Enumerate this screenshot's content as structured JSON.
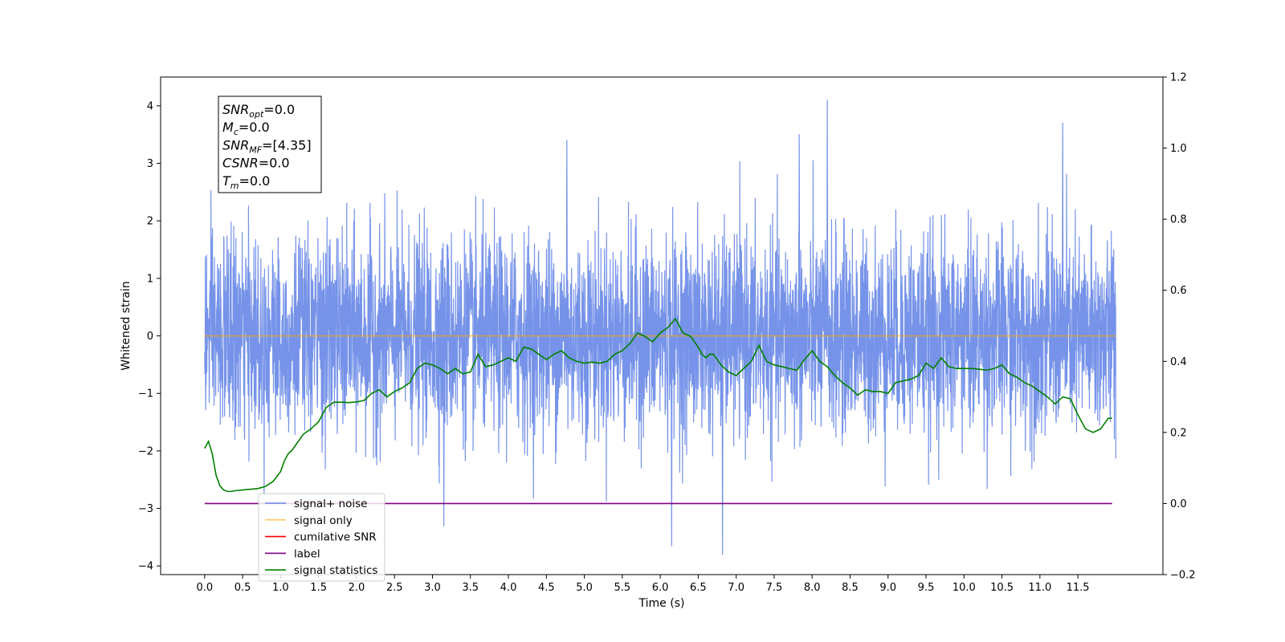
{
  "chart_data": {
    "type": "line",
    "title": "",
    "xlabel": "Time (s)",
    "ylabel": "Whitened strain",
    "y2label": "",
    "xlim": [
      -0.58,
      12.62
    ],
    "ylim": [
      -4.15,
      4.5
    ],
    "y2lim": [
      -0.2,
      1.2
    ],
    "x_ticks": [
      0.0,
      0.5,
      1.0,
      1.5,
      2.0,
      2.5,
      3.0,
      3.5,
      4.0,
      4.5,
      5.0,
      5.5,
      6.0,
      6.5,
      7.0,
      7.5,
      8.0,
      8.5,
      9.0,
      9.5,
      10.0,
      10.5,
      11.0,
      11.5
    ],
    "x_tick_labels": [
      "0.0",
      "0.5",
      "1.0",
      "1.5",
      "2.0",
      "2.5",
      "3.0",
      "3.5",
      "4.0",
      "4.5",
      "5.0",
      "5.5",
      "6.0",
      "6.5",
      "7.0",
      "7.5",
      "8.0",
      "8.5",
      "9.0",
      "9.5",
      "10.0",
      "10.5",
      "11.0",
      "11.5"
    ],
    "y_ticks": [
      -4,
      -3,
      -2,
      -1,
      0,
      1,
      2,
      3,
      4
    ],
    "y_tick_labels": [
      "−4",
      "−3",
      "−2",
      "−1",
      "0",
      "1",
      "2",
      "3",
      "4"
    ],
    "y2_ticks": [
      -0.2,
      0.0,
      0.2,
      0.4,
      0.6,
      0.8,
      1.0,
      1.2
    ],
    "y2_tick_labels": [
      "−0.2",
      "0.0",
      "0.2",
      "0.4",
      "0.6",
      "0.8",
      "1.0",
      "1.2"
    ],
    "grid": false,
    "legend_position": "lower-left",
    "series": [
      {
        "name": "signal+ noise",
        "color": "#4169e1",
        "axis": "left",
        "kind": "noise",
        "x_range": [
          0.0,
          12.0
        ],
        "approx_mean": 0.0,
        "approx_range": [
          -3.8,
          4.1
        ],
        "notable_peaks": [
          [
            8.2,
            4.1
          ],
          [
            11.3,
            3.7
          ],
          [
            4.77,
            3.4
          ],
          [
            7.83,
            3.5
          ],
          [
            6.82,
            -3.8
          ],
          [
            6.15,
            -3.65
          ],
          [
            3.15,
            -3.3
          ]
        ]
      },
      {
        "name": "signal only",
        "color": "#ffa500",
        "axis": "left",
        "x": [
          0.0,
          12.0
        ],
        "y": [
          0.0,
          0.0
        ]
      },
      {
        "name": "cumilative SNR",
        "color": "#ff0000",
        "axis": "right",
        "x": [],
        "y": []
      },
      {
        "name": "label",
        "color": "#800080",
        "axis": "right",
        "x": [
          0.0,
          11.95
        ],
        "y": [
          0.0,
          0.0
        ]
      },
      {
        "name": "signal statistics",
        "color": "#008000",
        "axis": "right",
        "x": [
          0.0,
          0.05,
          0.1,
          0.15,
          0.2,
          0.25,
          0.3,
          0.35,
          0.4,
          0.5,
          0.6,
          0.7,
          0.8,
          0.9,
          1.0,
          1.05,
          1.1,
          1.15,
          1.2,
          1.3,
          1.4,
          1.5,
          1.6,
          1.7,
          1.8,
          1.9,
          2.0,
          2.1,
          2.2,
          2.3,
          2.4,
          2.5,
          2.6,
          2.7,
          2.8,
          2.9,
          3.0,
          3.1,
          3.2,
          3.3,
          3.4,
          3.5,
          3.6,
          3.7,
          3.8,
          3.9,
          4.0,
          4.1,
          4.2,
          4.3,
          4.4,
          4.5,
          4.6,
          4.7,
          4.8,
          4.9,
          5.0,
          5.1,
          5.2,
          5.3,
          5.4,
          5.5,
          5.6,
          5.7,
          5.8,
          5.9,
          6.0,
          6.1,
          6.2,
          6.3,
          6.4,
          6.5,
          6.55,
          6.6,
          6.65,
          6.7,
          6.8,
          6.9,
          7.0,
          7.1,
          7.2,
          7.3,
          7.4,
          7.5,
          7.6,
          7.7,
          7.8,
          7.85,
          7.9,
          8.0,
          8.1,
          8.2,
          8.3,
          8.4,
          8.5,
          8.6,
          8.7,
          8.8,
          8.9,
          9.0,
          9.1,
          9.2,
          9.3,
          9.4,
          9.5,
          9.6,
          9.7,
          9.8,
          9.9,
          10.0,
          10.1,
          10.2,
          10.3,
          10.4,
          10.5,
          10.6,
          10.7,
          10.8,
          10.9,
          11.0,
          11.1,
          11.2,
          11.3,
          11.4,
          11.5,
          11.6,
          11.7,
          11.8,
          11.9,
          11.95
        ],
        "y": [
          0.155,
          0.175,
          0.14,
          0.08,
          0.05,
          0.038,
          0.034,
          0.034,
          0.036,
          0.038,
          0.04,
          0.042,
          0.048,
          0.062,
          0.09,
          0.12,
          0.14,
          0.15,
          0.165,
          0.195,
          0.21,
          0.23,
          0.27,
          0.285,
          0.285,
          0.284,
          0.286,
          0.29,
          0.31,
          0.32,
          0.3,
          0.315,
          0.325,
          0.34,
          0.38,
          0.395,
          0.39,
          0.38,
          0.365,
          0.38,
          0.365,
          0.37,
          0.42,
          0.385,
          0.39,
          0.4,
          0.41,
          0.4,
          0.44,
          0.435,
          0.42,
          0.405,
          0.42,
          0.43,
          0.41,
          0.4,
          0.395,
          0.398,
          0.395,
          0.4,
          0.42,
          0.43,
          0.45,
          0.48,
          0.47,
          0.455,
          0.48,
          0.495,
          0.52,
          0.48,
          0.47,
          0.44,
          0.42,
          0.41,
          0.42,
          0.42,
          0.39,
          0.37,
          0.36,
          0.38,
          0.4,
          0.445,
          0.4,
          0.39,
          0.385,
          0.38,
          0.375,
          0.39,
          0.405,
          0.43,
          0.4,
          0.385,
          0.36,
          0.34,
          0.325,
          0.305,
          0.32,
          0.315,
          0.315,
          0.31,
          0.34,
          0.345,
          0.35,
          0.36,
          0.395,
          0.38,
          0.41,
          0.385,
          0.38,
          0.38,
          0.38,
          0.378,
          0.375,
          0.38,
          0.39,
          0.365,
          0.355,
          0.34,
          0.33,
          0.315,
          0.3,
          0.28,
          0.3,
          0.295,
          0.25,
          0.21,
          0.2,
          0.21,
          0.24,
          0.24
        ]
      }
    ],
    "info_box": {
      "lines": [
        {
          "main": "SNR",
          "sub": "opt",
          "value": "=0.0"
        },
        {
          "main": "M",
          "sub": "c",
          "value": "=0.0"
        },
        {
          "main": "SNR",
          "sub": "MF",
          "value": "=[4.35]"
        },
        {
          "main": "CSNR",
          "sub": "",
          "value": "=0.0"
        },
        {
          "main": "T",
          "sub": "m",
          "value": "=0.0"
        }
      ]
    },
    "legend_entries": [
      {
        "label": "signal+ noise",
        "color": "#4169e1"
      },
      {
        "label": "signal only",
        "color": "#ffa500"
      },
      {
        "label": "cumilative SNR",
        "color": "#ff0000"
      },
      {
        "label": "label",
        "color": "#800080"
      },
      {
        "label": "signal statistics",
        "color": "#008000"
      }
    ]
  }
}
